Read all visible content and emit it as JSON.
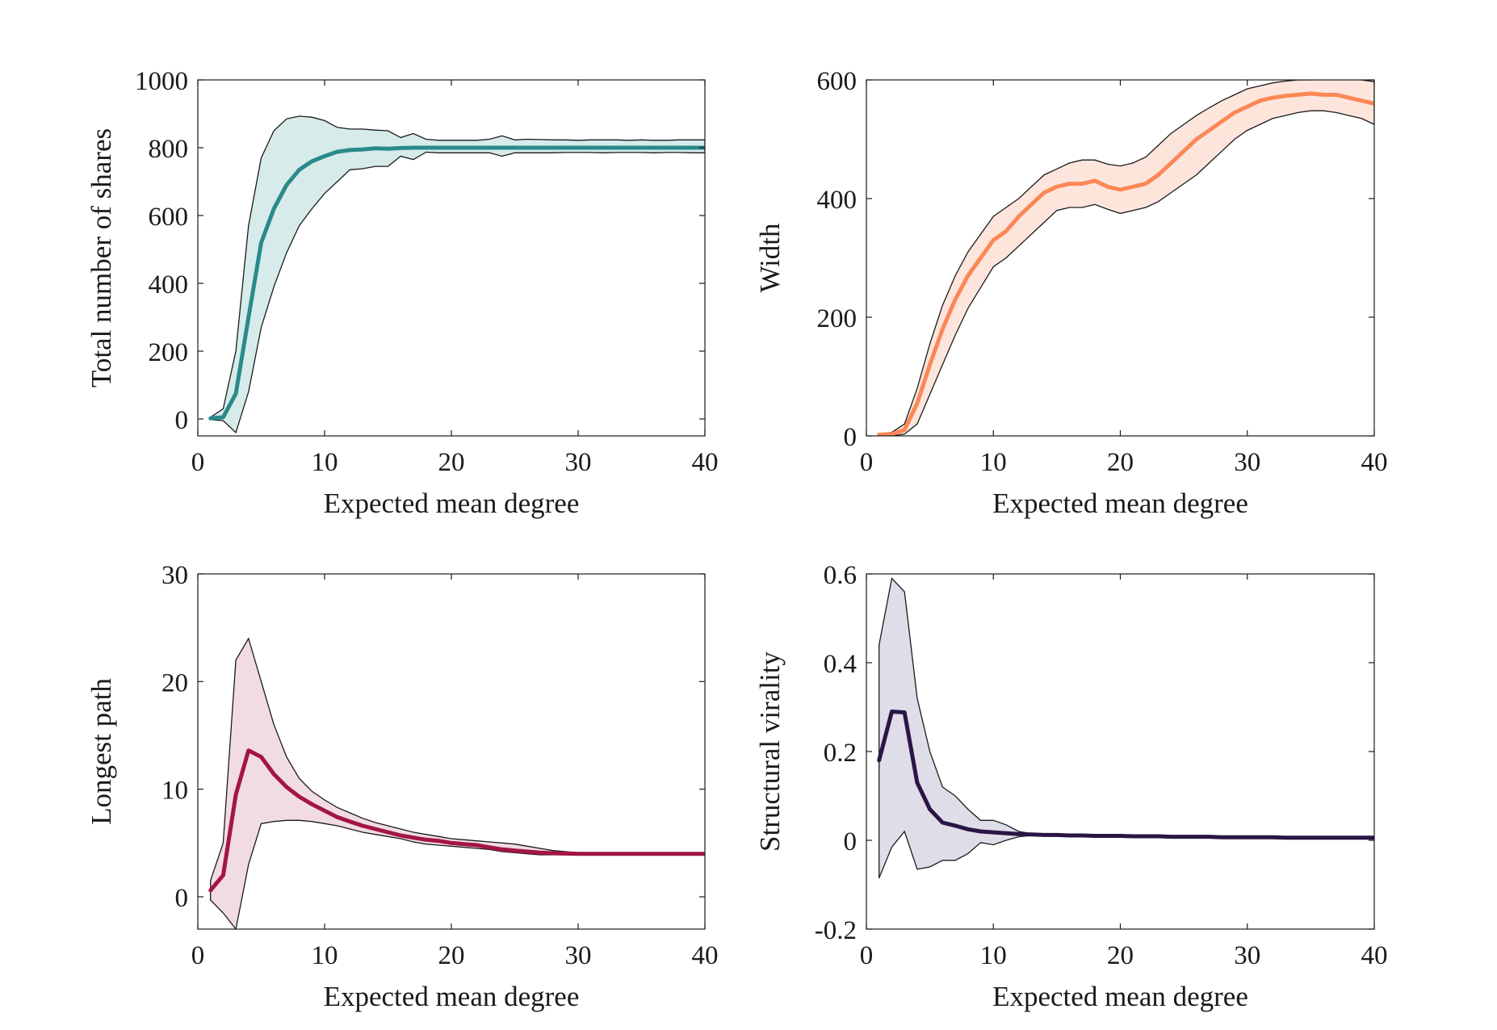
{
  "chart_data": [
    {
      "type": "line",
      "xlabel": "Expected mean degree",
      "ylabel": "Total number of shares",
      "xlim": [
        0,
        40
      ],
      "ylim": [
        -50,
        1000
      ],
      "xticks": [
        0,
        10,
        20,
        30,
        40
      ],
      "yticks": [
        0,
        200,
        400,
        600,
        800,
        1000
      ],
      "grid": false,
      "legend": "none",
      "color": "#2a8a8a",
      "band_color": "#d6ebea",
      "x": [
        1,
        2,
        3,
        4,
        5,
        6,
        7,
        8,
        9,
        10,
        11,
        12,
        13,
        14,
        15,
        16,
        17,
        18,
        19,
        20,
        21,
        22,
        23,
        24,
        25,
        26,
        27,
        28,
        29,
        30,
        31,
        32,
        33,
        34,
        35,
        36,
        37,
        38,
        39,
        40
      ],
      "series": [
        {
          "values": [
            2,
            5,
            75,
            300,
            520,
            620,
            690,
            735,
            760,
            775,
            788,
            793,
            795,
            798,
            797,
            799,
            800,
            800,
            800,
            800,
            800,
            800,
            800,
            800,
            800,
            800,
            800,
            800,
            800,
            800,
            800,
            800,
            800,
            800,
            800,
            800,
            800,
            800,
            800,
            800
          ]
        }
      ],
      "band_upper": [
        5,
        30,
        200,
        570,
        770,
        850,
        885,
        893,
        890,
        880,
        860,
        855,
        855,
        852,
        850,
        830,
        842,
        825,
        822,
        822,
        822,
        822,
        825,
        835,
        823,
        825,
        824,
        823,
        823,
        822,
        823,
        823,
        823,
        822,
        823,
        822,
        822,
        823,
        823,
        823
      ],
      "band_lower": [
        -2,
        -5,
        -40,
        80,
        270,
        390,
        490,
        570,
        620,
        665,
        700,
        735,
        738,
        745,
        745,
        775,
        765,
        787,
        785,
        785,
        785,
        785,
        785,
        775,
        785,
        785,
        785,
        785,
        786,
        786,
        786,
        785,
        786,
        786,
        786,
        785,
        786,
        786,
        785,
        785
      ]
    },
    {
      "type": "line",
      "xlabel": "Expected mean degree",
      "ylabel": "Width",
      "xlim": [
        0,
        40
      ],
      "ylim": [
        0,
        600
      ],
      "xticks": [
        0,
        10,
        20,
        30,
        40
      ],
      "yticks": [
        0,
        200,
        400,
        600
      ],
      "grid": false,
      "legend": "none",
      "color": "#fb8757",
      "band_color": "#fde5dc",
      "x": [
        1,
        2,
        3,
        4,
        5,
        6,
        7,
        8,
        9,
        10,
        11,
        12,
        13,
        14,
        15,
        16,
        17,
        18,
        19,
        20,
        21,
        22,
        23,
        24,
        25,
        26,
        27,
        28,
        29,
        30,
        31,
        32,
        33,
        34,
        35,
        36,
        37,
        38,
        39,
        40
      ],
      "series": [
        {
          "values": [
            2,
            3,
            10,
            55,
            120,
            180,
            230,
            270,
            300,
            330,
            345,
            370,
            390,
            410,
            420,
            425,
            425,
            430,
            420,
            415,
            420,
            425,
            440,
            460,
            480,
            500,
            515,
            530,
            545,
            555,
            565,
            570,
            573,
            575,
            577,
            575,
            575,
            570,
            565,
            560
          ]
        }
      ],
      "band_upper": [
        4,
        6,
        20,
        80,
        155,
        220,
        270,
        310,
        340,
        370,
        385,
        400,
        420,
        440,
        450,
        460,
        465,
        465,
        458,
        455,
        460,
        470,
        490,
        510,
        525,
        540,
        553,
        565,
        575,
        585,
        590,
        595,
        598,
        600,
        600,
        602,
        603,
        602,
        600,
        597
      ],
      "band_lower": [
        0,
        0,
        3,
        20,
        70,
        120,
        170,
        215,
        250,
        285,
        300,
        320,
        340,
        360,
        380,
        385,
        385,
        390,
        382,
        375,
        380,
        385,
        395,
        410,
        425,
        440,
        460,
        480,
        500,
        515,
        525,
        535,
        540,
        545,
        548,
        548,
        545,
        540,
        535,
        525
      ]
    },
    {
      "type": "line",
      "xlabel": "Expected mean degree",
      "ylabel": "Longest path",
      "xlim": [
        0,
        40
      ],
      "ylim": [
        -3,
        30
      ],
      "xticks": [
        0,
        10,
        20,
        30,
        40
      ],
      "yticks": [
        0,
        10,
        20,
        30
      ],
      "grid": false,
      "legend": "none",
      "color": "#a31545",
      "band_color": "#f1dce1",
      "x": [
        1,
        2,
        3,
        4,
        5,
        6,
        7,
        8,
        9,
        10,
        11,
        12,
        13,
        14,
        15,
        16,
        17,
        18,
        19,
        20,
        21,
        22,
        23,
        24,
        25,
        26,
        27,
        28,
        29,
        30,
        31,
        32,
        33,
        34,
        35,
        36,
        37,
        38,
        39,
        40
      ],
      "series": [
        {
          "values": [
            0.6,
            2,
            9.5,
            13.6,
            13,
            11.4,
            10.2,
            9.3,
            8.6,
            8,
            7.4,
            7,
            6.6,
            6.3,
            6,
            5.7,
            5.5,
            5.3,
            5.2,
            5,
            4.9,
            4.8,
            4.6,
            4.4,
            4.3,
            4.2,
            4.1,
            4.05,
            4.02,
            4,
            4,
            4,
            4,
            4,
            4,
            4,
            4,
            4,
            4,
            4
          ]
        }
      ],
      "band_upper": [
        1.5,
        5,
        22,
        24,
        20,
        16,
        13,
        11,
        9.8,
        9,
        8.3,
        7.8,
        7.3,
        6.9,
        6.6,
        6.3,
        6,
        5.8,
        5.6,
        5.4,
        5.3,
        5.2,
        5.1,
        5,
        4.9,
        4.7,
        4.5,
        4.3,
        4.2,
        4.1,
        4.05,
        4.02,
        4.01,
        4,
        4,
        4,
        4,
        4,
        4,
        4
      ],
      "band_lower": [
        -0.3,
        -1.5,
        -3,
        3,
        6.8,
        7,
        7.1,
        7.1,
        7,
        6.8,
        6.6,
        6.3,
        6,
        5.8,
        5.6,
        5.4,
        5.1,
        4.9,
        4.8,
        4.7,
        4.6,
        4.5,
        4.4,
        4.2,
        4.1,
        4,
        3.9,
        3.9,
        3.9,
        3.95,
        3.98,
        3.99,
        4,
        4,
        4,
        4,
        4,
        4,
        4,
        4
      ]
    },
    {
      "type": "line",
      "xlabel": "Expected mean degree",
      "ylabel": "Structural virality",
      "xlim": [
        0,
        40
      ],
      "ylim": [
        -0.2,
        0.6
      ],
      "xticks": [
        0,
        10,
        20,
        30,
        40
      ],
      "yticks": [
        -0.2,
        0,
        0.2,
        0.4,
        0.6
      ],
      "ytick_labels": [
        "-0.2",
        "0",
        "0.2",
        "0.4",
        "0.6"
      ],
      "grid": false,
      "legend": "none",
      "color": "#2b1545",
      "band_color": "#dedde8",
      "x": [
        1,
        2,
        3,
        4,
        5,
        6,
        7,
        8,
        9,
        10,
        11,
        12,
        13,
        14,
        15,
        16,
        17,
        18,
        19,
        20,
        21,
        22,
        23,
        24,
        25,
        26,
        27,
        28,
        29,
        30,
        31,
        32,
        33,
        34,
        35,
        36,
        37,
        38,
        39,
        40
      ],
      "series": [
        {
          "values": [
            0.18,
            0.29,
            0.288,
            0.13,
            0.07,
            0.04,
            0.033,
            0.025,
            0.02,
            0.018,
            0.016,
            0.014,
            0.013,
            0.012,
            0.012,
            0.011,
            0.011,
            0.01,
            0.01,
            0.01,
            0.009,
            0.009,
            0.009,
            0.008,
            0.008,
            0.008,
            0.008,
            0.007,
            0.007,
            0.007,
            0.007,
            0.007,
            0.006,
            0.006,
            0.006,
            0.006,
            0.006,
            0.006,
            0.006,
            0.006
          ]
        }
      ],
      "band_upper": [
        0.44,
        0.59,
        0.56,
        0.32,
        0.2,
        0.12,
        0.1,
        0.07,
        0.045,
        0.045,
        0.035,
        0.02,
        0.015,
        0.013,
        0.013,
        0.012,
        0.011,
        0.011,
        0.01,
        0.01,
        0.01,
        0.01,
        0.009,
        0.009,
        0.009,
        0.008,
        0.008,
        0.008,
        0.008,
        0.008,
        0.007,
        0.007,
        0.007,
        0.007,
        0.007,
        0.007,
        0.007,
        0.007,
        0.007,
        0.007
      ],
      "band_lower": [
        -0.085,
        -0.015,
        0.02,
        -0.065,
        -0.06,
        -0.045,
        -0.045,
        -0.03,
        -0.005,
        -0.01,
        0.0,
        0.008,
        0.011,
        0.011,
        0.011,
        0.01,
        0.01,
        0.009,
        0.009,
        0.009,
        0.008,
        0.008,
        0.008,
        0.007,
        0.007,
        0.007,
        0.007,
        0.006,
        0.006,
        0.006,
        0.006,
        0.006,
        0.005,
        0.005,
        0.005,
        0.005,
        0.005,
        0.005,
        0.005,
        0.005
      ]
    }
  ]
}
